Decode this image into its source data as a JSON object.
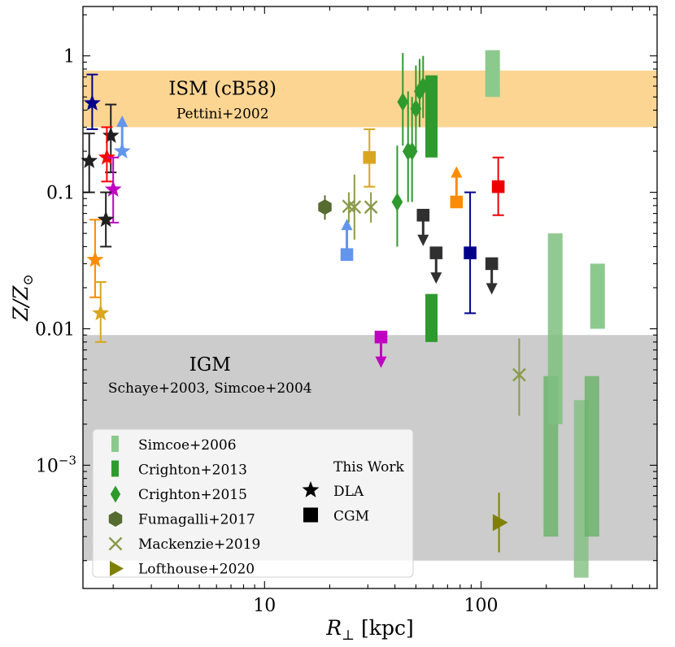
{
  "chart_data": {
    "type": "scatter",
    "xscale": "log",
    "yscale": "log",
    "xlim": [
      1.45,
      650
    ],
    "ylim": [
      0.000125,
      2.3
    ],
    "xlabel": "R",
    "xlabel_sub": "⊥",
    "xlabel_unit": " [kpc]",
    "ylabel": "Z/Z",
    "ylabel_sub": "⊙",
    "x_ticks": [
      {
        "value": 10,
        "label": "10"
      },
      {
        "value": 100,
        "label": "100"
      }
    ],
    "y_ticks": [
      {
        "value": 0.001,
        "label": "10",
        "sup": "−3"
      },
      {
        "value": 0.01,
        "label": "0.01"
      },
      {
        "value": 0.1,
        "label": "0.1"
      },
      {
        "value": 1,
        "label": "1"
      }
    ],
    "bands": [
      {
        "name": "ism-band",
        "y0": 0.3,
        "y1": 0.78,
        "color": "#fdd592",
        "title": "ISM (cB58)",
        "subtitle": "Pettini+2002",
        "label_x": 6.4,
        "title_y": 0.58,
        "subtitle_y": 0.38
      },
      {
        "name": "igm-band",
        "y0": 0.0002,
        "y1": 0.009,
        "color": "#cccccc",
        "title": "IGM",
        "subtitle": "Schaye+2003, Simcoe+2004",
        "label_x": 5.6,
        "title_y": 0.0055,
        "subtitle_y": 0.0037
      }
    ],
    "bars": [
      {
        "group": "simcoe-2006",
        "x": 113,
        "y0": 0.5,
        "y1": 1.1,
        "color": "#8cc98c",
        "opacity": 1.0,
        "width": 18
      },
      {
        "group": "simcoe-2006",
        "x": 210,
        "y0": 0.0003,
        "y1": 0.0045,
        "color": "#6db36d",
        "opacity": 0.85,
        "width": 18
      },
      {
        "group": "simcoe-2006",
        "x": 220,
        "y0": 0.002,
        "y1": 0.05,
        "color": "#7fbf7f",
        "opacity": 0.85,
        "width": 18
      },
      {
        "group": "simcoe-2006",
        "x": 290,
        "y0": 0.00015,
        "y1": 0.003,
        "color": "#7fbf7f",
        "opacity": 0.8,
        "width": 18
      },
      {
        "group": "simcoe-2006",
        "x": 325,
        "y0": 0.0003,
        "y1": 0.0045,
        "color": "#6db36d",
        "opacity": 0.85,
        "width": 18
      },
      {
        "group": "simcoe-2006",
        "x": 345,
        "y0": 0.01,
        "y1": 0.03,
        "color": "#8cc98c",
        "opacity": 1.0,
        "width": 18
      },
      {
        "group": "crighton-2013",
        "x": 59,
        "y0": 0.18,
        "y1": 0.72,
        "color": "#2e9a2e",
        "opacity": 1.0,
        "width": 15
      },
      {
        "group": "crighton-2013",
        "x": 59,
        "y0": 0.008,
        "y1": 0.018,
        "color": "#2e9a2e",
        "opacity": 1.0,
        "width": 15
      }
    ],
    "series": [
      {
        "name": "This Work DLA",
        "marker": "star",
        "points": [
          {
            "x": 1.6,
            "y": 0.45,
            "lo": 0.29,
            "hi": 0.73,
            "color": "#00008b"
          },
          {
            "x": 1.55,
            "y": 0.17,
            "lo": 0.1,
            "hi": 0.27,
            "color": "#202020"
          },
          {
            "x": 1.95,
            "y": 0.26,
            "lo": 0.14,
            "hi": 0.44,
            "color": "#202020"
          },
          {
            "x": 1.87,
            "y": 0.18,
            "lo": 0.12,
            "hi": 0.3,
            "color": "#ff0000"
          },
          {
            "x": 2.2,
            "y": 0.2,
            "arrow": "up",
            "color": "#6495ed"
          },
          {
            "x": 2.0,
            "y": 0.105,
            "lo": 0.06,
            "hi": 0.18,
            "color": "#c000c0"
          },
          {
            "x": 1.85,
            "y": 0.063,
            "lo": 0.04,
            "hi": 0.1,
            "color": "#202020"
          },
          {
            "x": 1.65,
            "y": 0.032,
            "lo": 0.017,
            "hi": 0.063,
            "color": "#ff8c00"
          },
          {
            "x": 1.75,
            "y": 0.013,
            "lo": 0.008,
            "hi": 0.022,
            "color": "#daa520"
          }
        ]
      },
      {
        "name": "This Work CGM",
        "marker": "square",
        "points": [
          {
            "x": 24,
            "y": 0.035,
            "arrow": "up",
            "color": "#6495ed"
          },
          {
            "x": 30.5,
            "y": 0.18,
            "lo": 0.11,
            "hi": 0.29,
            "color": "#daa520"
          },
          {
            "x": 34.5,
            "y": 0.0087,
            "arrow": "down",
            "color": "#c000c0"
          },
          {
            "x": 54,
            "y": 0.068,
            "arrow": "down",
            "color": "#303030"
          },
          {
            "x": 62,
            "y": 0.036,
            "arrow": "down",
            "color": "#303030"
          },
          {
            "x": 77,
            "y": 0.085,
            "arrow": "up",
            "color": "#ff8c00"
          },
          {
            "x": 89,
            "y": 0.036,
            "lo": 0.013,
            "hi": 0.1,
            "color": "#00008b"
          },
          {
            "x": 112,
            "y": 0.03,
            "arrow": "down",
            "color": "#303030"
          },
          {
            "x": 120,
            "y": 0.11,
            "lo": 0.068,
            "hi": 0.18,
            "color": "#ee0000"
          }
        ]
      },
      {
        "name": "Crighton+2015",
        "marker": "diamond",
        "color": "#2e9a2e",
        "points": [
          {
            "x": 41,
            "y": 0.085,
            "lo": 0.04,
            "hi": 0.22
          },
          {
            "x": 43.5,
            "y": 0.46,
            "lo": 0.22,
            "hi": 1.05
          },
          {
            "x": 46,
            "y": 0.2,
            "lo": 0.085,
            "hi": 0.55
          },
          {
            "x": 48,
            "y": 0.2,
            "lo": 0.085,
            "hi": 0.5
          },
          {
            "x": 50,
            "y": 0.41,
            "lo": 0.2,
            "hi": 0.85
          },
          {
            "x": 52,
            "y": 0.55,
            "lo": 0.3,
            "hi": 0.95
          },
          {
            "x": 54,
            "y": 0.6,
            "lo": 0.35,
            "hi": 1.0
          }
        ]
      },
      {
        "name": "Fumagalli+2017",
        "marker": "hexagon",
        "color": "#556b2f",
        "points": [
          {
            "x": 19,
            "y": 0.078,
            "lo": 0.063,
            "hi": 0.095
          }
        ]
      },
      {
        "name": "Mackenzie+2019",
        "marker": "x",
        "color": "#8a9a4a",
        "points": [
          {
            "x": 24.5,
            "y": 0.079,
            "lo": 0.06,
            "hi": 0.1
          },
          {
            "x": 26,
            "y": 0.078,
            "lo": 0.045,
            "hi": 0.135
          },
          {
            "x": 31,
            "y": 0.078,
            "lo": 0.06,
            "hi": 0.1
          },
          {
            "x": 150,
            "y": 0.0046,
            "lo": 0.0023,
            "hi": 0.0085
          }
        ]
      },
      {
        "name": "Lofthouse+2020",
        "marker": "triright",
        "color": "#808000",
        "points": [
          {
            "x": 121,
            "y": 0.00038,
            "lo": 0.00023,
            "hi": 0.00063
          }
        ]
      }
    ],
    "legend": {
      "position": "lower-left",
      "entries": [
        {
          "label": "Simcoe+2006",
          "marker": "bar",
          "color": "#8cc98c"
        },
        {
          "label": "Crighton+2013",
          "marker": "bar",
          "color": "#2e9a2e"
        },
        {
          "label": "Crighton+2015",
          "marker": "diamond",
          "color": "#2e9a2e"
        },
        {
          "label": "Fumagalli+2017",
          "marker": "hexagon",
          "color": "#556b2f"
        },
        {
          "label": "Mackenzie+2019",
          "marker": "x",
          "color": "#8a9a4a"
        },
        {
          "label": "Lofthouse+2020",
          "marker": "triright",
          "color": "#808000"
        }
      ],
      "work_title": "This Work",
      "work_entries": [
        {
          "label": "DLA",
          "marker": "star",
          "color": "#000000"
        },
        {
          "label": "CGM",
          "marker": "square",
          "color": "#000000"
        }
      ]
    }
  }
}
